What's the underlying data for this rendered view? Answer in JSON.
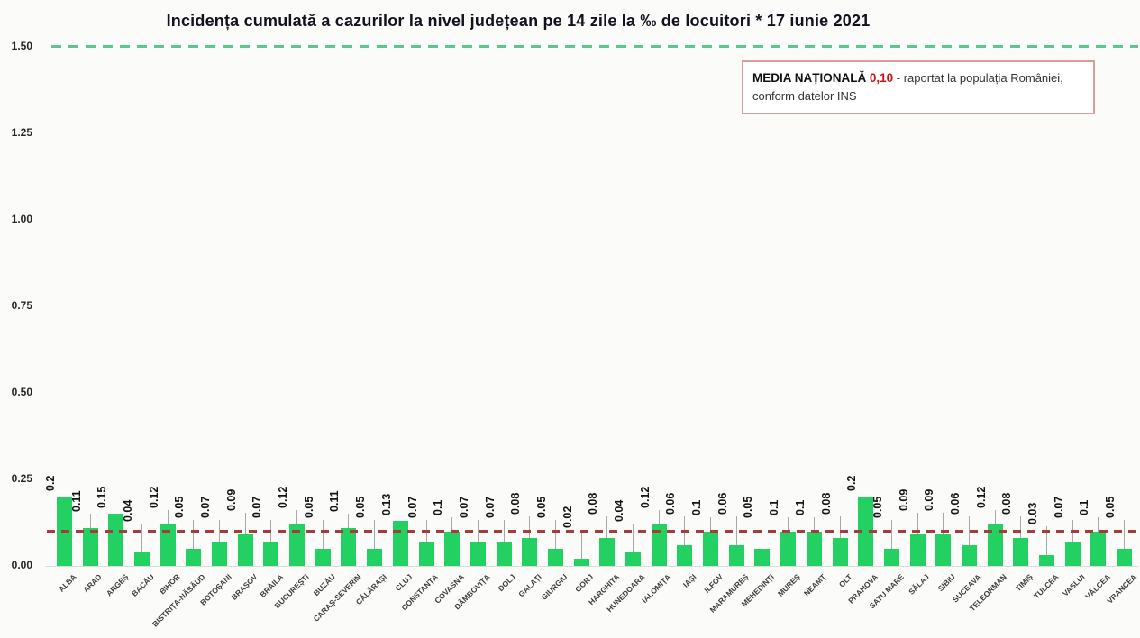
{
  "chart_data": {
    "type": "bar",
    "title": "Incidența cumulată a cazurilor la nivel județean pe 14 zile la ‰ de locuitori * 17 iunie 2021",
    "date": "17 iunie 2021",
    "xlabel": "",
    "ylabel": "",
    "ylim": [
      0,
      1.5
    ],
    "yticks": [
      "0.00",
      "0.25",
      "0.50",
      "0.75",
      "1.00",
      "1.25",
      "1.50"
    ],
    "grid": false,
    "bar_color": "#22d161",
    "categories": [
      "ALBA",
      "ARAD",
      "ARGEȘ",
      "BACĂU",
      "BIHOR",
      "BISTRIȚA-NĂSĂUD",
      "BOTOȘANI",
      "BRAȘOV",
      "BRĂILA",
      "BUCUREȘTI",
      "BUZĂU",
      "CARAȘ-SEVERIN",
      "CĂLĂRAȘI",
      "CLUJ",
      "CONSTANȚA",
      "COVASNA",
      "DÂMBOVIȚA",
      "DOLJ",
      "GALAȚI",
      "GIURGIU",
      "GORJ",
      "HARGHITA",
      "HUNEDOARA",
      "IALOMIȚA",
      "IAȘI",
      "ILFOV",
      "MARAMUREȘ",
      "MEHEDINȚI",
      "MUREȘ",
      "NEAMȚ",
      "OLT",
      "PRAHOVA",
      "SATU MARE",
      "SĂLAJ",
      "SIBIU",
      "SUCEAVA",
      "TELEORMAN",
      "TIMIȘ",
      "TULCEA",
      "VASLUI",
      "VÂLCEA",
      "VRANCEA"
    ],
    "values": [
      0.2,
      0.11,
      0.15,
      0.04,
      0.12,
      0.05,
      0.07,
      0.09,
      0.07,
      0.12,
      0.05,
      0.11,
      0.05,
      0.13,
      0.07,
      0.1,
      0.07,
      0.07,
      0.08,
      0.05,
      0.02,
      0.08,
      0.04,
      0.12,
      0.06,
      0.1,
      0.06,
      0.05,
      0.1,
      0.1,
      0.08,
      0.2,
      0.05,
      0.09,
      0.09,
      0.06,
      0.12,
      0.08,
      0.03,
      0.07,
      0.1,
      0.05
    ],
    "value_labels": [
      "0.2",
      "0.11",
      "0.15",
      "0.04",
      "0.12",
      "0.05",
      "0.07",
      "0.09",
      "0.07",
      "0.12",
      "0.05",
      "0.11",
      "0.05",
      "0.13",
      "0.07",
      "0.1",
      "0.07",
      "0.07",
      "0.08",
      "0.05",
      "0.02",
      "0.08",
      "0.04",
      "0.12",
      "0.06",
      "0.1",
      "0.06",
      "0.05",
      "0.1",
      "0.1",
      "0.08",
      "0.2",
      "0.05",
      "0.09",
      "0.09",
      "0.06",
      "0.12",
      "0.08",
      "0.03",
      "0.07",
      "0.1",
      "0.05"
    ],
    "reference_lines": [
      {
        "name": "media-nationala",
        "value": 0.1,
        "style": "dashed",
        "color": "#a53c3c"
      },
      {
        "name": "upper-guide",
        "value": 1.5,
        "style": "dashed",
        "color": "#5ac88c"
      }
    ],
    "legend_position": "top-right"
  },
  "callout": {
    "label": "MEDIA NAȚIONALĂ",
    "value": "0,10",
    "value_color": "#cc1111",
    "text_line1": "- raportat la populația României,",
    "text_line2": "conform datelor INS"
  }
}
